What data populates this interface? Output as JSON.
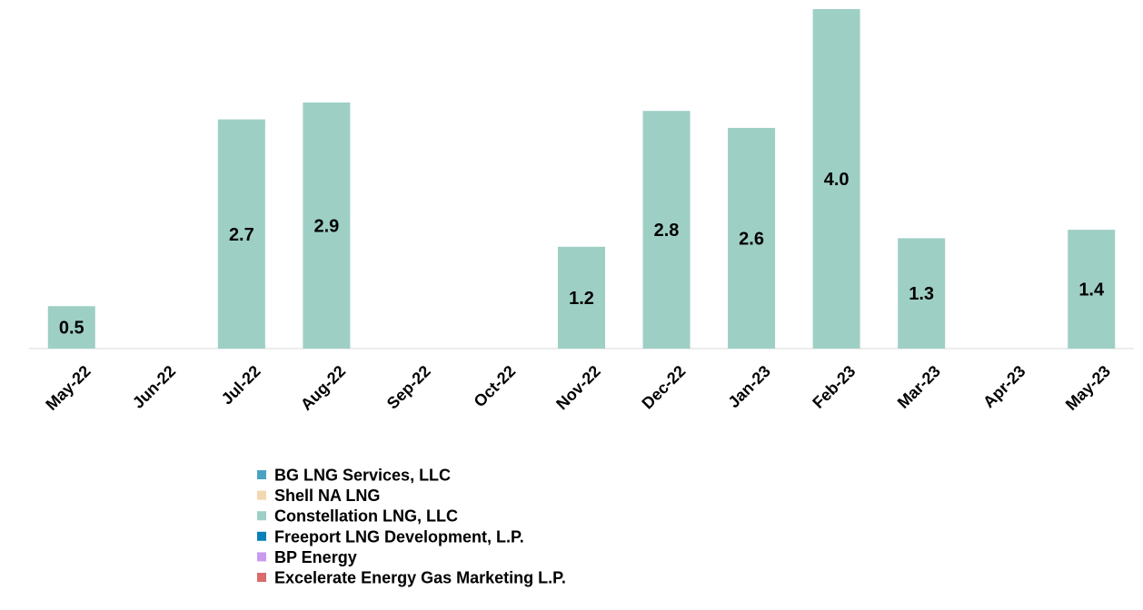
{
  "chart_data": {
    "type": "bar",
    "stacked": true,
    "categories": [
      "May-22",
      "Jun-22",
      "Jul-22",
      "Aug-22",
      "Sep-22",
      "Oct-22",
      "Nov-22",
      "Dec-22",
      "Jan-23",
      "Feb-23",
      "Mar-23",
      "Apr-23",
      "May-23"
    ],
    "ylim": [
      0,
      4
    ],
    "series": [
      {
        "name": "BG LNG Services, LLC",
        "color": "#4ba3c3",
        "values": [
          null,
          null,
          null,
          null,
          null,
          null,
          null,
          null,
          null,
          null,
          null,
          null,
          null
        ]
      },
      {
        "name": "Shell NA LNG",
        "color": "#f2d7b0",
        "values": [
          null,
          null,
          null,
          null,
          null,
          null,
          null,
          null,
          null,
          null,
          null,
          null,
          null
        ]
      },
      {
        "name": "Constellation LNG, LLC",
        "color": "#9ecfc5",
        "values": [
          0.5,
          null,
          2.7,
          2.9,
          null,
          null,
          1.2,
          2.8,
          2.6,
          4.0,
          1.3,
          null,
          1.4
        ],
        "value_labels": [
          "0.5",
          null,
          "2.7",
          "2.9",
          null,
          null,
          "1.2",
          "2.8",
          "2.6",
          "4.0",
          "1.3",
          null,
          "1.4"
        ]
      },
      {
        "name": "Freeport LNG Development, L.P.",
        "color": "#0a7fb8",
        "values": [
          null,
          null,
          null,
          null,
          null,
          null,
          null,
          null,
          null,
          null,
          null,
          null,
          null
        ]
      },
      {
        "name": "BP Energy",
        "color": "#c89bf0",
        "values": [
          null,
          null,
          null,
          null,
          null,
          null,
          null,
          null,
          null,
          null,
          null,
          null,
          null
        ]
      },
      {
        "name": "Excelerate Energy Gas Marketing L.P.",
        "color": "#d96b6b",
        "values": [
          null,
          null,
          null,
          null,
          null,
          null,
          null,
          null,
          null,
          null,
          null,
          null,
          null
        ]
      }
    ]
  }
}
